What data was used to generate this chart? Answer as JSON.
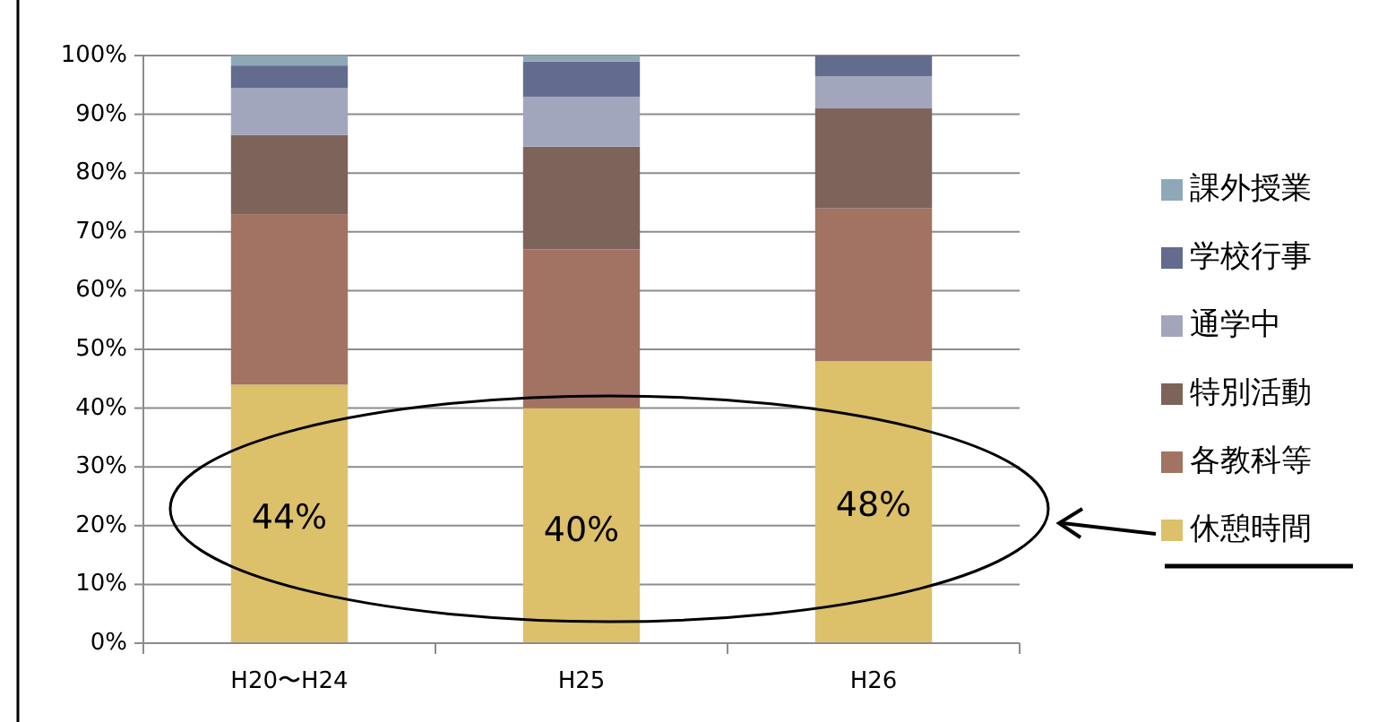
{
  "chart_data": {
    "type": "bar",
    "stacked": true,
    "categories": [
      "H20〜H24",
      "H25",
      "H26"
    ],
    "series": [
      {
        "name": "休憩時間",
        "color": "#dcc06a",
        "values": [
          44,
          40,
          48
        ],
        "value_labels": [
          "44%",
          "40%",
          "48%"
        ]
      },
      {
        "name": "各教科等",
        "color": "#a27262",
        "values": [
          29,
          27,
          26
        ]
      },
      {
        "name": "特別活動",
        "color": "#7d635a",
        "values": [
          13.5,
          17.5,
          17
        ]
      },
      {
        "name": "通学中",
        "color": "#a2a6bc",
        "values": [
          8,
          8.5,
          5.5
        ]
      },
      {
        "name": "学校行事",
        "color": "#636b8e",
        "values": [
          3.8,
          6,
          3.5
        ]
      },
      {
        "name": "課外授業",
        "color": "#8ea8b8",
        "values": [
          1.7,
          1,
          null
        ]
      }
    ],
    "ylim": [
      0,
      100
    ],
    "yticks": [
      {
        "value": 0,
        "label": "0%"
      },
      {
        "value": 10,
        "label": "10%"
      },
      {
        "value": 20,
        "label": "20%"
      },
      {
        "value": 30,
        "label": "30%"
      },
      {
        "value": 40,
        "label": "40%"
      },
      {
        "value": 50,
        "label": "50%"
      },
      {
        "value": 60,
        "label": "60%"
      },
      {
        "value": 70,
        "label": "70%"
      },
      {
        "value": 80,
        "label": "80%"
      },
      {
        "value": 90,
        "label": "90%"
      },
      {
        "value": 100,
        "label": "100%"
      }
    ],
    "grid": "y",
    "legend": "right"
  }
}
